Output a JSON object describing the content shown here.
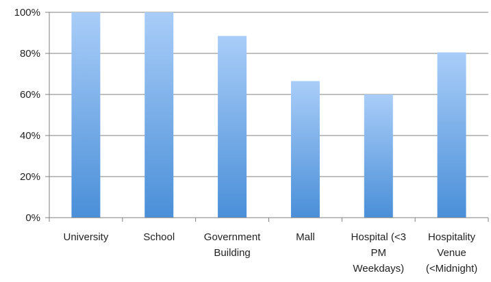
{
  "chart_data": {
    "type": "bar",
    "title": "",
    "xlabel": "",
    "ylabel": "",
    "categories": [
      [
        "University"
      ],
      [
        "School"
      ],
      [
        "Government",
        "Building"
      ],
      [
        "Mall"
      ],
      [
        "Hospital (<3",
        "PM",
        "Weekdays)"
      ],
      [
        "Hospitality",
        "Venue",
        "(<Midnight)"
      ]
    ],
    "values": [
      100,
      100,
      88.5,
      66.5,
      60,
      80.5
    ],
    "ylim": [
      0,
      100
    ],
    "yticks": [
      0,
      20,
      40,
      60,
      80,
      100
    ],
    "ytick_labels": [
      "0%",
      "20%",
      "40%",
      "60%",
      "80%",
      "100%"
    ],
    "grid": true,
    "legend": "none",
    "colors": {
      "bar_top": "#a9cdf8",
      "bar_bottom": "#4a8fd8",
      "grid": "#7f7f7f",
      "axis": "#7f7f7f"
    }
  }
}
